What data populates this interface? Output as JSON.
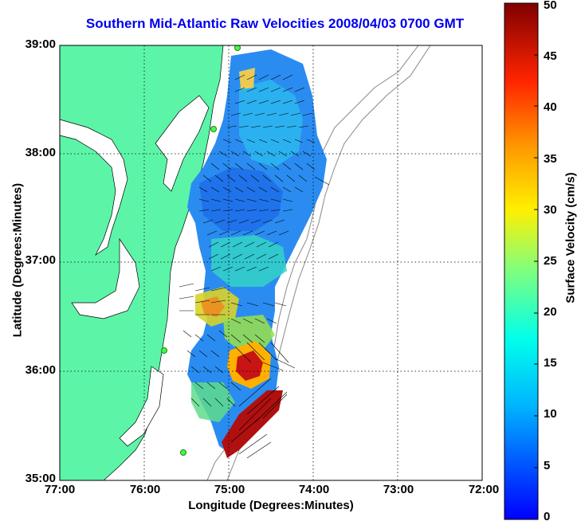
{
  "title": "Southern Mid-Atlantic Raw Velocities 2008/04/03 0700 GMT",
  "axes": {
    "xlabel": "Longitude (Degrees:Minutes)",
    "ylabel": "Latitude (Degrees:Minutes)",
    "x_ticks": [
      "77:00",
      "76:00",
      "75:00",
      "74:00",
      "73:00",
      "72:00"
    ],
    "y_ticks": [
      "39:00",
      "38:00",
      "37:00",
      "36:00",
      "35:00"
    ]
  },
  "colorbar": {
    "label": "Surface Velocity (cm/s)",
    "ticks": [
      "50",
      "45",
      "40",
      "35",
      "30",
      "25",
      "20",
      "15",
      "10",
      "5",
      "0"
    ],
    "range": [
      0,
      50
    ]
  },
  "colors": {
    "land": "#5cf5a8",
    "title": "#0000ee"
  },
  "icons": [
    "station-marker-icon"
  ]
}
